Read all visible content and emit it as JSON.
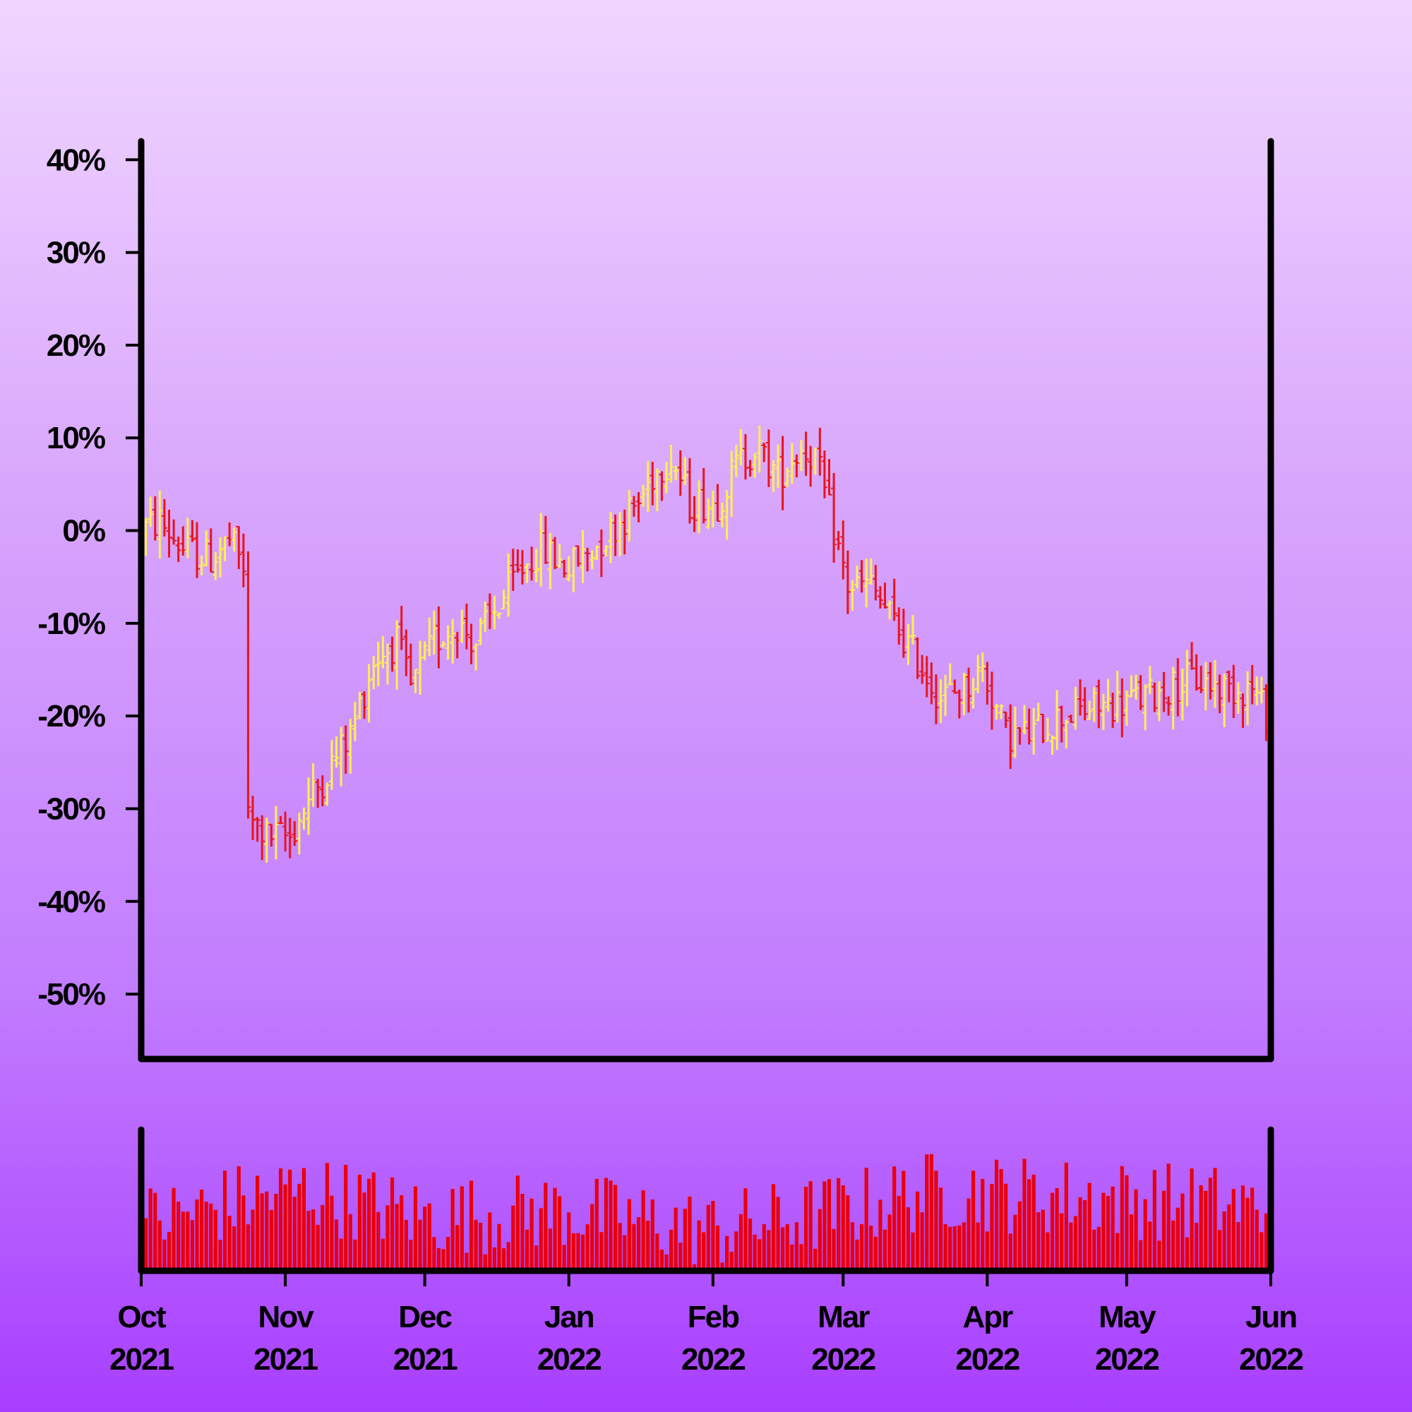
{
  "colors": {
    "background_top": "#f0d6ff",
    "background_bottom": "#a83eff",
    "up_bar": "#ffee55",
    "down_bar": "#e8141c",
    "volume": "#e8000e",
    "axis": "#000000"
  },
  "chart_data": {
    "type": "ohlc",
    "title": "",
    "xlabel": "",
    "ylabel": "",
    "y_tick_labels": [
      "40%",
      "30%",
      "20%",
      "10%",
      "0%",
      "-10%",
      "-20%",
      "-30%",
      "-40%",
      "-50%"
    ],
    "y_ticks": [
      40,
      30,
      20,
      10,
      0,
      -10,
      -20,
      -30,
      -40,
      -50
    ],
    "ylim": [
      -57,
      42
    ],
    "x_range": [
      "2021-10-01",
      "2022-06-01"
    ],
    "x_ticks": [
      {
        "date": "2021-10-01",
        "month": "Oct",
        "year": "2021"
      },
      {
        "date": "2021-11-01",
        "month": "Nov",
        "year": "2021"
      },
      {
        "date": "2021-12-01",
        "month": "Dec",
        "year": "2021"
      },
      {
        "date": "2022-01-01",
        "month": "Jan",
        "year": "2022"
      },
      {
        "date": "2022-02-01",
        "month": "Feb",
        "year": "2022"
      },
      {
        "date": "2022-03-01",
        "month": "Mar",
        "year": "2022"
      },
      {
        "date": "2022-04-01",
        "month": "Apr",
        "year": "2022"
      },
      {
        "date": "2022-05-01",
        "month": "May",
        "year": "2022"
      },
      {
        "date": "2022-06-01",
        "month": "Jun",
        "year": "2022"
      }
    ],
    "price_trend": [
      {
        "date": "2021-10-01",
        "value": 0
      },
      {
        "date": "2021-10-05",
        "value": 1
      },
      {
        "date": "2021-10-10",
        "value": -2
      },
      {
        "date": "2021-10-16",
        "value": -3
      },
      {
        "date": "2021-10-20",
        "value": -1
      },
      {
        "date": "2021-10-23",
        "value": -4
      },
      {
        "date": "2021-10-24",
        "value": -31
      },
      {
        "date": "2021-10-28",
        "value": -33
      },
      {
        "date": "2021-11-02",
        "value": -33
      },
      {
        "date": "2021-11-05",
        "value": -30
      },
      {
        "date": "2021-11-10",
        "value": -26
      },
      {
        "date": "2021-11-15",
        "value": -22
      },
      {
        "date": "2021-11-20",
        "value": -14
      },
      {
        "date": "2021-11-25",
        "value": -12
      },
      {
        "date": "2021-11-28",
        "value": -17
      },
      {
        "date": "2021-12-03",
        "value": -12
      },
      {
        "date": "2021-12-08",
        "value": -10
      },
      {
        "date": "2021-12-12",
        "value": -12
      },
      {
        "date": "2021-12-17",
        "value": -8
      },
      {
        "date": "2021-12-22",
        "value": -4
      },
      {
        "date": "2021-12-26",
        "value": -2
      },
      {
        "date": "2022-01-01",
        "value": -4
      },
      {
        "date": "2022-01-06",
        "value": -2
      },
      {
        "date": "2022-01-12",
        "value": 1
      },
      {
        "date": "2022-01-16",
        "value": 3
      },
      {
        "date": "2022-01-19",
        "value": 6
      },
      {
        "date": "2022-01-23",
        "value": 8
      },
      {
        "date": "2022-01-27",
        "value": 3
      },
      {
        "date": "2022-02-02",
        "value": 3
      },
      {
        "date": "2022-02-06",
        "value": 7
      },
      {
        "date": "2022-02-10",
        "value": 9
      },
      {
        "date": "2022-02-15",
        "value": 6
      },
      {
        "date": "2022-02-20",
        "value": 9
      },
      {
        "date": "2022-02-23",
        "value": 8
      },
      {
        "date": "2022-02-27",
        "value": 0
      },
      {
        "date": "2022-03-02",
        "value": -6
      },
      {
        "date": "2022-03-07",
        "value": -6
      },
      {
        "date": "2022-03-12",
        "value": -10
      },
      {
        "date": "2022-03-17",
        "value": -14
      },
      {
        "date": "2022-03-22",
        "value": -18
      },
      {
        "date": "2022-03-27",
        "value": -17
      },
      {
        "date": "2022-03-31",
        "value": -15
      },
      {
        "date": "2022-04-05",
        "value": -22
      },
      {
        "date": "2022-04-10",
        "value": -22
      },
      {
        "date": "2022-04-17",
        "value": -20
      },
      {
        "date": "2022-04-25",
        "value": -19
      },
      {
        "date": "2022-05-05",
        "value": -18
      },
      {
        "date": "2022-05-15",
        "value": -16
      },
      {
        "date": "2022-05-22",
        "value": -17
      },
      {
        "date": "2022-05-28",
        "value": -17
      },
      {
        "date": "2022-06-01",
        "value": -21
      }
    ],
    "volume_level": [
      {
        "date": "2021-10-01",
        "value": 0.35
      },
      {
        "date": "2021-10-20",
        "value": 0.5
      },
      {
        "date": "2021-11-05",
        "value": 0.6
      },
      {
        "date": "2021-12-01",
        "value": 0.4
      },
      {
        "date": "2022-01-01",
        "value": 0.45
      },
      {
        "date": "2022-02-01",
        "value": 0.3
      },
      {
        "date": "2022-03-01",
        "value": 0.45
      },
      {
        "date": "2022-03-20",
        "value": 0.6
      },
      {
        "date": "2022-04-20",
        "value": 0.55
      },
      {
        "date": "2022-05-20",
        "value": 0.5
      },
      {
        "date": "2022-06-01",
        "value": 0.45
      }
    ],
    "volume_range": [
      0,
      1
    ],
    "grid": false,
    "legend": "none"
  }
}
